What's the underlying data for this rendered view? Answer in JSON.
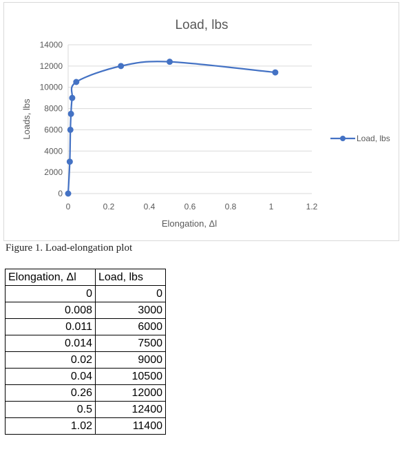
{
  "chart_data": {
    "type": "scatter",
    "title": "Load, lbs",
    "xlabel": "Elongation, Δl",
    "ylabel": "Loads, lbs",
    "xlim": [
      0,
      1.2
    ],
    "ylim": [
      0,
      14000
    ],
    "x_ticks": [
      "0",
      "0.2",
      "0.4",
      "0.6",
      "0.8",
      "1",
      "1.2"
    ],
    "y_ticks": [
      "0",
      "2000",
      "4000",
      "6000",
      "8000",
      "10000",
      "12000",
      "14000"
    ],
    "grid": true,
    "legend_position": "right",
    "series": [
      {
        "name": "Load, lbs",
        "color": "#4472c4",
        "x": [
          0,
          0.008,
          0.011,
          0.014,
          0.02,
          0.04,
          0.26,
          0.5,
          1.02
        ],
        "y": [
          0,
          3000,
          6000,
          7500,
          9000,
          10500,
          12000,
          12400,
          11400
        ]
      }
    ]
  },
  "caption": "Figure 1. Load-elongation plot",
  "table": {
    "headers": [
      "Elongation, Δl",
      "Load, lbs"
    ],
    "rows": [
      [
        "0",
        "0"
      ],
      [
        "0.008",
        "3000"
      ],
      [
        "0.011",
        "6000"
      ],
      [
        "0.014",
        "7500"
      ],
      [
        "0.02",
        "9000"
      ],
      [
        "0.04",
        "10500"
      ],
      [
        "0.26",
        "12000"
      ],
      [
        "0.5",
        "12400"
      ],
      [
        "1.02",
        "11400"
      ]
    ]
  }
}
